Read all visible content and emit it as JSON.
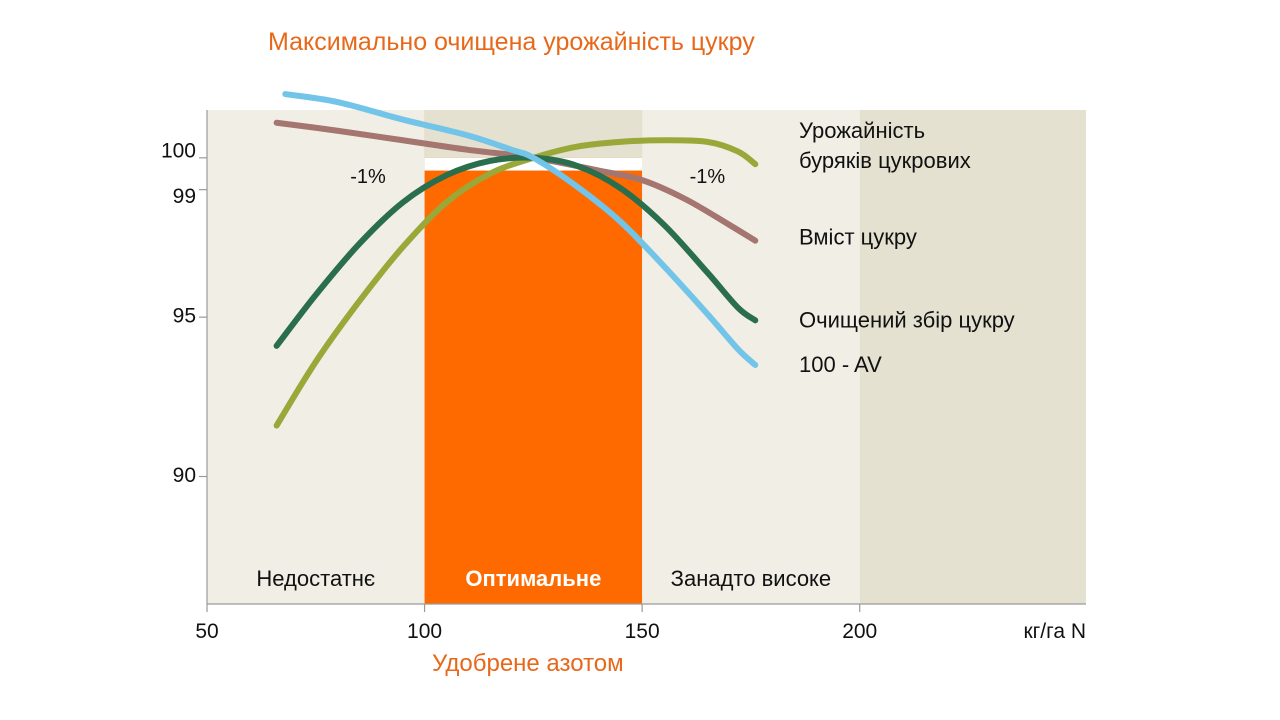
{
  "chart_data": {
    "type": "line",
    "title": "Максимально очищена урожайність цукру",
    "xlabel": "Удобрене азотом",
    "x_unit": "кг/га N",
    "xlim": [
      50,
      252
    ],
    "ylim": [
      86,
      101.5
    ],
    "x_ticks": [
      {
        "value": 50,
        "label": "50"
      },
      {
        "value": 100,
        "label": "100"
      },
      {
        "value": 150,
        "label": "150"
      },
      {
        "value": 200,
        "label": "200"
      }
    ],
    "y_ticks": [
      {
        "value": 100,
        "label": "100"
      },
      {
        "value": 99,
        "label": "99"
      },
      {
        "value": 95,
        "label": "95"
      },
      {
        "value": 90,
        "label": "90"
      }
    ],
    "zones": [
      {
        "label": "Недостатнє",
        "from": 50,
        "to": 100,
        "color": "#f1eee6",
        "text_color": "#111111",
        "bold": false
      },
      {
        "label": "Оптимальне",
        "from": 100,
        "to": 150,
        "color": "#ff6a00",
        "text_color": "#ffffff",
        "bold": true
      },
      {
        "label": "Занадто високе",
        "from": 150,
        "to": 200,
        "color": "#f1eee6",
        "text_color": "#111111",
        "bold": false
      },
      {
        "label": "",
        "from": 200,
        "to": 252,
        "color": "#e4e1d1",
        "text_color": "#111111",
        "bold": false
      }
    ],
    "annotations": [
      {
        "text": "-1%",
        "x": 87,
        "y": 99.4
      },
      {
        "text": "-1%",
        "x": 165,
        "y": 99.4
      }
    ],
    "series": [
      {
        "name": "Урожайність буряків цукрових",
        "color": "#9aa83a",
        "x": [
          66,
          75,
          85,
          95,
          105,
          115,
          125,
          135,
          145,
          155,
          165,
          172,
          176
        ],
        "y": [
          91.6,
          93.6,
          95.5,
          97.2,
          98.6,
          99.5,
          100.0,
          100.35,
          100.5,
          100.55,
          100.5,
          100.2,
          99.8
        ]
      },
      {
        "name": "Вміст цукру",
        "color": "#a57570",
        "x": [
          66,
          80,
          95,
          110,
          125,
          140,
          150,
          160,
          170,
          176
        ],
        "y": [
          101.1,
          100.85,
          100.55,
          100.25,
          100.0,
          99.6,
          99.3,
          98.7,
          97.9,
          97.4
        ]
      },
      {
        "name": "Очищений збір цукру",
        "color": "#2a6e4e",
        "x": [
          66,
          75,
          85,
          95,
          105,
          115,
          125,
          135,
          145,
          155,
          165,
          172,
          176
        ],
        "y": [
          94.1,
          95.7,
          97.3,
          98.6,
          99.45,
          99.9,
          100.0,
          99.75,
          99.05,
          97.9,
          96.4,
          95.3,
          94.9
        ]
      },
      {
        "name": "100 - AV",
        "color": "#72c4e8",
        "x": [
          68,
          80,
          95,
          110,
          120,
          125,
          135,
          145,
          155,
          165,
          172,
          176
        ],
        "y": [
          102.0,
          101.75,
          101.2,
          100.7,
          100.25,
          100.0,
          99.1,
          98.0,
          96.6,
          95.1,
          94.0,
          93.5
        ]
      }
    ],
    "legend_labels": [
      {
        "series": "Урожайність буряків цукрових",
        "lines": [
          "Урожайність",
          "буряків цукрових"
        ],
        "y": 100.0
      },
      {
        "series": "Вміст цукру",
        "lines": [
          "Вміст цукру"
        ],
        "y": 97.5
      },
      {
        "series": "Очищений збір цукру",
        "lines": [
          "Очищений збір цукру"
        ],
        "y": 94.9
      },
      {
        "series": "100 - AV",
        "lines": [
          "100 - AV"
        ],
        "y": 93.5
      }
    ],
    "legend_placement": "right",
    "grid": false
  }
}
